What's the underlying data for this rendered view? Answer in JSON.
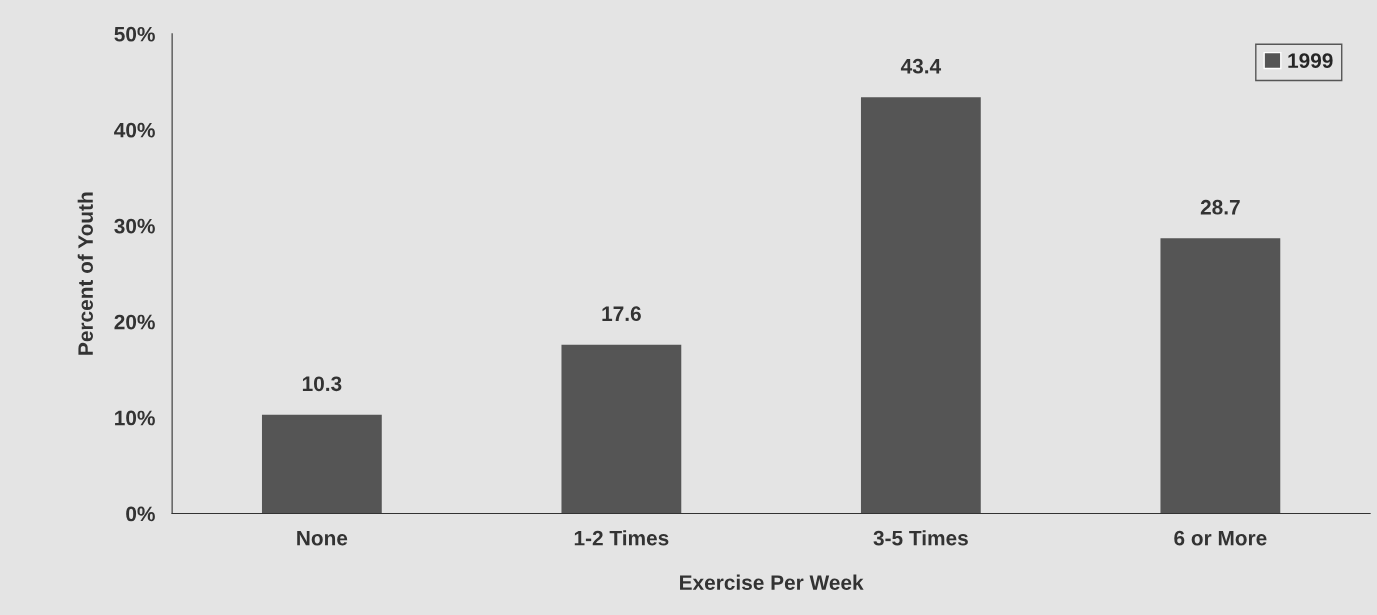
{
  "chart_data": {
    "type": "bar",
    "xlabel": "Exercise Per Week",
    "ylabel": "Percent of Youth",
    "categories": [
      "None",
      "1-2 Times",
      "3-5 Times",
      "6 or More"
    ],
    "series": [
      {
        "name": "1999",
        "color": "#555555",
        "values": [
          10.3,
          17.6,
          43.4,
          28.7
        ]
      }
    ],
    "ylim": [
      0,
      50
    ],
    "yticks": [
      {
        "value": 0,
        "label": "0%"
      },
      {
        "value": 10,
        "label": "10%"
      },
      {
        "value": 20,
        "label": "20%"
      },
      {
        "value": 30,
        "label": "30%"
      },
      {
        "value": 40,
        "label": "40%"
      },
      {
        "value": 50,
        "label": "50%"
      }
    ],
    "data_labels": true,
    "legend": "top right",
    "grid": false
  }
}
